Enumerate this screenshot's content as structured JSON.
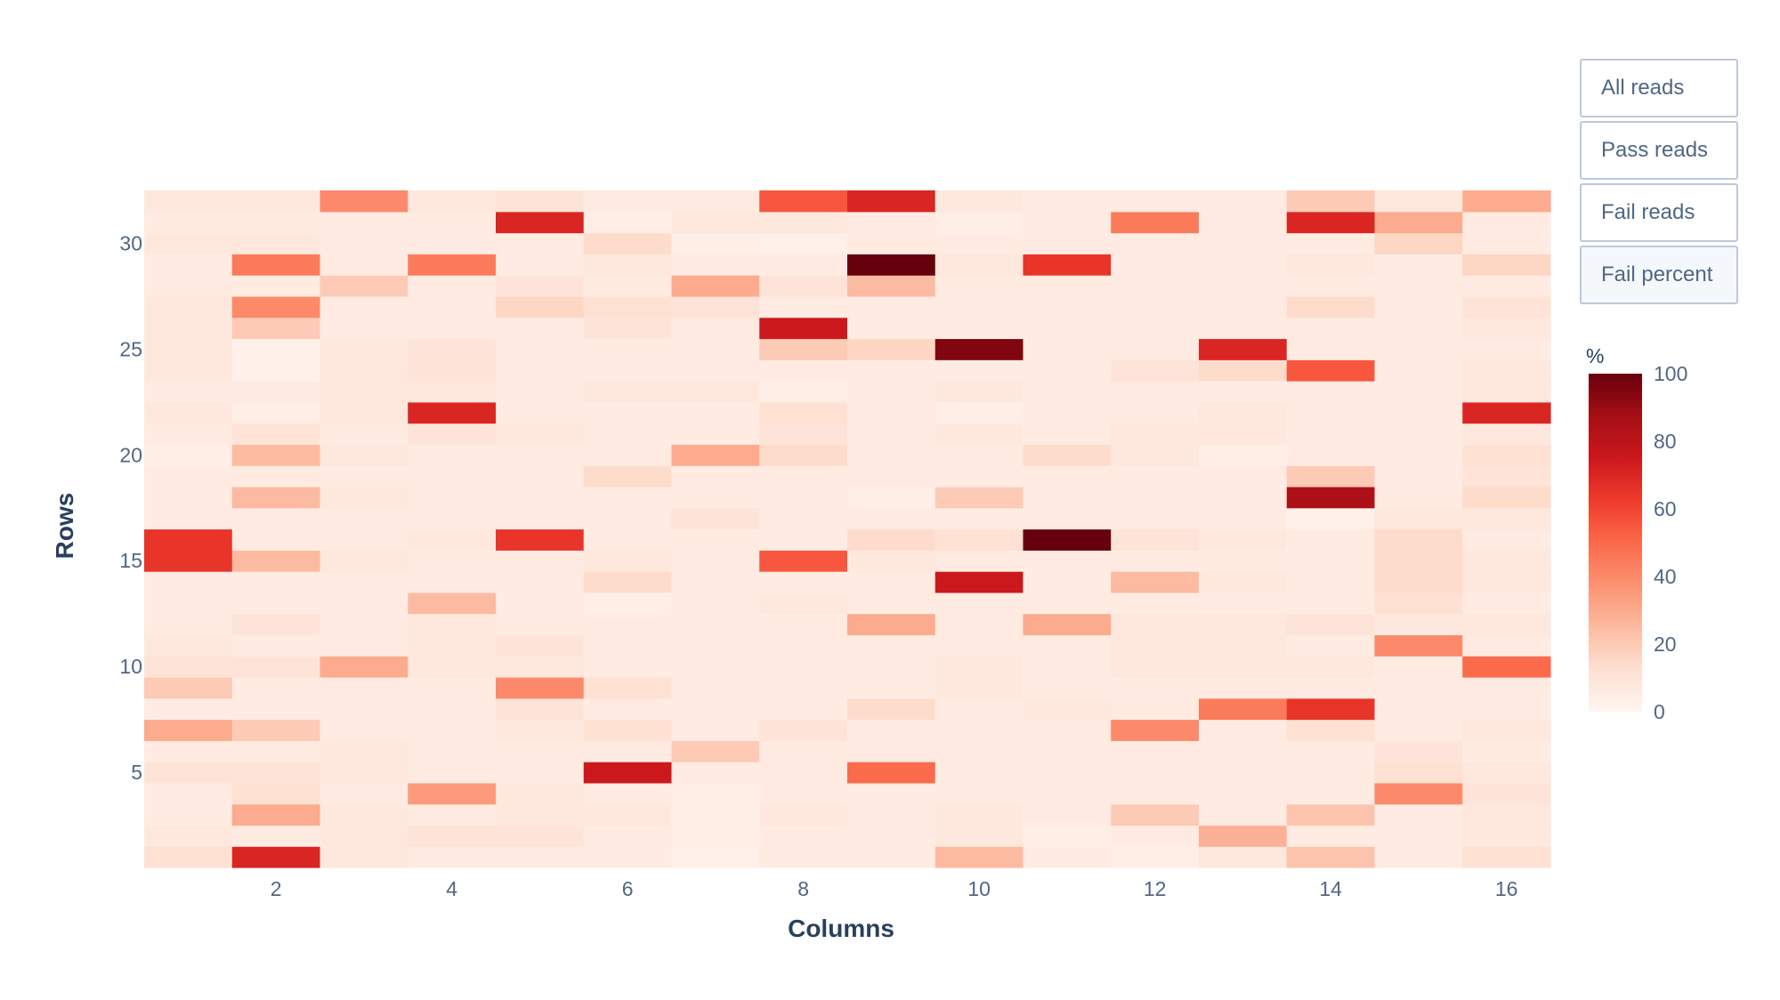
{
  "buttons": [
    {
      "label": "All reads",
      "active": false
    },
    {
      "label": "Pass reads",
      "active": false
    },
    {
      "label": "Fail reads",
      "active": false
    },
    {
      "label": "Fail percent",
      "active": true
    }
  ],
  "chart_data": {
    "type": "heatmap",
    "title": "",
    "xlabel": "Columns",
    "ylabel": "Rows",
    "x": [
      1,
      2,
      3,
      4,
      5,
      6,
      7,
      8,
      9,
      10,
      11,
      12,
      13,
      14,
      15,
      16
    ],
    "y": [
      1,
      2,
      3,
      4,
      5,
      6,
      7,
      8,
      9,
      10,
      11,
      12,
      13,
      14,
      15,
      16,
      17,
      18,
      19,
      20,
      21,
      22,
      23,
      24,
      25,
      26,
      27,
      28,
      29,
      30,
      31,
      32
    ],
    "x_ticks": [
      2,
      4,
      6,
      8,
      10,
      12,
      14,
      16
    ],
    "y_ticks": [
      5,
      10,
      15,
      20,
      25,
      30
    ],
    "x_tick_labels": [
      "2",
      "4",
      "6",
      "8",
      "10",
      "12",
      "14",
      "16"
    ],
    "y_tick_labels": [
      "5",
      "10",
      "15",
      "20",
      "25",
      "30"
    ],
    "colorscale": "Reds",
    "colorbar": {
      "title": "%",
      "range": [
        0,
        100
      ],
      "ticks": [
        0,
        20,
        40,
        60,
        80,
        100
      ],
      "tick_labels": [
        "0",
        "20",
        "40",
        "60",
        "80",
        "100"
      ]
    },
    "z": [
      [
        12,
        70,
        8,
        6,
        6,
        6,
        3,
        6,
        6,
        25,
        6,
        4,
        8,
        22,
        6,
        12
      ],
      [
        8,
        6,
        8,
        10,
        10,
        6,
        4,
        6,
        6,
        8,
        4,
        6,
        28,
        6,
        6,
        8
      ],
      [
        6,
        30,
        8,
        6,
        8,
        8,
        4,
        8,
        6,
        8,
        6,
        20,
        6,
        22,
        6,
        8
      ],
      [
        6,
        12,
        6,
        35,
        8,
        6,
        4,
        6,
        6,
        6,
        6,
        6,
        6,
        6,
        40,
        10
      ],
      [
        10,
        10,
        8,
        6,
        6,
        75,
        6,
        6,
        50,
        6,
        6,
        6,
        6,
        6,
        12,
        8
      ],
      [
        6,
        6,
        8,
        6,
        6,
        6,
        20,
        6,
        6,
        6,
        6,
        6,
        6,
        6,
        10,
        6
      ],
      [
        30,
        20,
        6,
        6,
        8,
        12,
        6,
        10,
        6,
        6,
        6,
        40,
        6,
        12,
        6,
        8
      ],
      [
        6,
        6,
        6,
        6,
        10,
        6,
        6,
        6,
        14,
        6,
        8,
        6,
        45,
        65,
        6,
        6
      ],
      [
        20,
        6,
        6,
        6,
        40,
        12,
        6,
        6,
        6,
        8,
        6,
        6,
        6,
        6,
        6,
        6
      ],
      [
        10,
        10,
        30,
        8,
        8,
        6,
        6,
        6,
        6,
        8,
        6,
        8,
        8,
        8,
        6,
        50
      ],
      [
        8,
        6,
        6,
        8,
        10,
        6,
        6,
        6,
        6,
        6,
        6,
        8,
        8,
        6,
        40,
        6
      ],
      [
        6,
        10,
        6,
        8,
        6,
        6,
        6,
        6,
        30,
        6,
        30,
        8,
        8,
        10,
        8,
        8
      ],
      [
        6,
        6,
        6,
        25,
        6,
        4,
        6,
        8,
        6,
        6,
        6,
        6,
        6,
        6,
        12,
        6
      ],
      [
        6,
        6,
        6,
        6,
        6,
        14,
        6,
        6,
        6,
        75,
        6,
        25,
        8,
        6,
        14,
        8
      ],
      [
        65,
        25,
        8,
        6,
        6,
        8,
        6,
        55,
        8,
        6,
        6,
        6,
        6,
        6,
        14,
        8
      ],
      [
        65,
        6,
        6,
        8,
        65,
        6,
        6,
        6,
        14,
        12,
        100,
        10,
        8,
        6,
        14,
        6
      ],
      [
        6,
        6,
        6,
        6,
        6,
        6,
        10,
        6,
        6,
        6,
        6,
        6,
        6,
        3,
        8,
        8
      ],
      [
        6,
        25,
        8,
        6,
        6,
        6,
        6,
        6,
        4,
        20,
        6,
        6,
        6,
        85,
        6,
        14
      ],
      [
        6,
        6,
        6,
        6,
        6,
        14,
        6,
        6,
        6,
        6,
        6,
        6,
        6,
        20,
        6,
        10
      ],
      [
        4,
        25,
        8,
        6,
        6,
        6,
        30,
        14,
        6,
        6,
        14,
        8,
        4,
        6,
        6,
        12
      ],
      [
        6,
        10,
        6,
        10,
        8,
        6,
        6,
        10,
        6,
        8,
        6,
        8,
        8,
        6,
        6,
        8
      ],
      [
        8,
        4,
        8,
        70,
        6,
        6,
        6,
        12,
        6,
        4,
        6,
        6,
        8,
        6,
        6,
        70
      ],
      [
        6,
        6,
        8,
        8,
        6,
        8,
        8,
        4,
        6,
        8,
        6,
        6,
        6,
        6,
        6,
        8
      ],
      [
        8,
        3,
        8,
        10,
        6,
        6,
        6,
        6,
        6,
        6,
        6,
        10,
        14,
        55,
        6,
        8
      ],
      [
        8,
        3,
        8,
        10,
        6,
        6,
        6,
        20,
        16,
        95,
        6,
        6,
        70,
        6,
        6,
        6
      ],
      [
        8,
        20,
        6,
        6,
        6,
        10,
        6,
        75,
        6,
        6,
        6,
        6,
        6,
        6,
        6,
        8
      ],
      [
        8,
        40,
        6,
        6,
        16,
        12,
        10,
        6,
        6,
        6,
        6,
        6,
        6,
        14,
        6,
        10
      ],
      [
        6,
        6,
        20,
        6,
        10,
        6,
        30,
        10,
        25,
        6,
        6,
        6,
        6,
        6,
        6,
        6
      ],
      [
        6,
        45,
        6,
        45,
        6,
        8,
        6,
        6,
        100,
        8,
        65,
        6,
        6,
        8,
        6,
        16
      ],
      [
        8,
        8,
        6,
        6,
        6,
        14,
        4,
        3,
        6,
        6,
        6,
        6,
        6,
        6,
        16,
        6
      ],
      [
        6,
        6,
        6,
        6,
        70,
        4,
        8,
        8,
        6,
        4,
        6,
        45,
        6,
        70,
        30,
        6
      ],
      [
        8,
        8,
        40,
        8,
        10,
        6,
        6,
        55,
        70,
        8,
        6,
        6,
        6,
        20,
        8,
        30
      ]
    ]
  }
}
